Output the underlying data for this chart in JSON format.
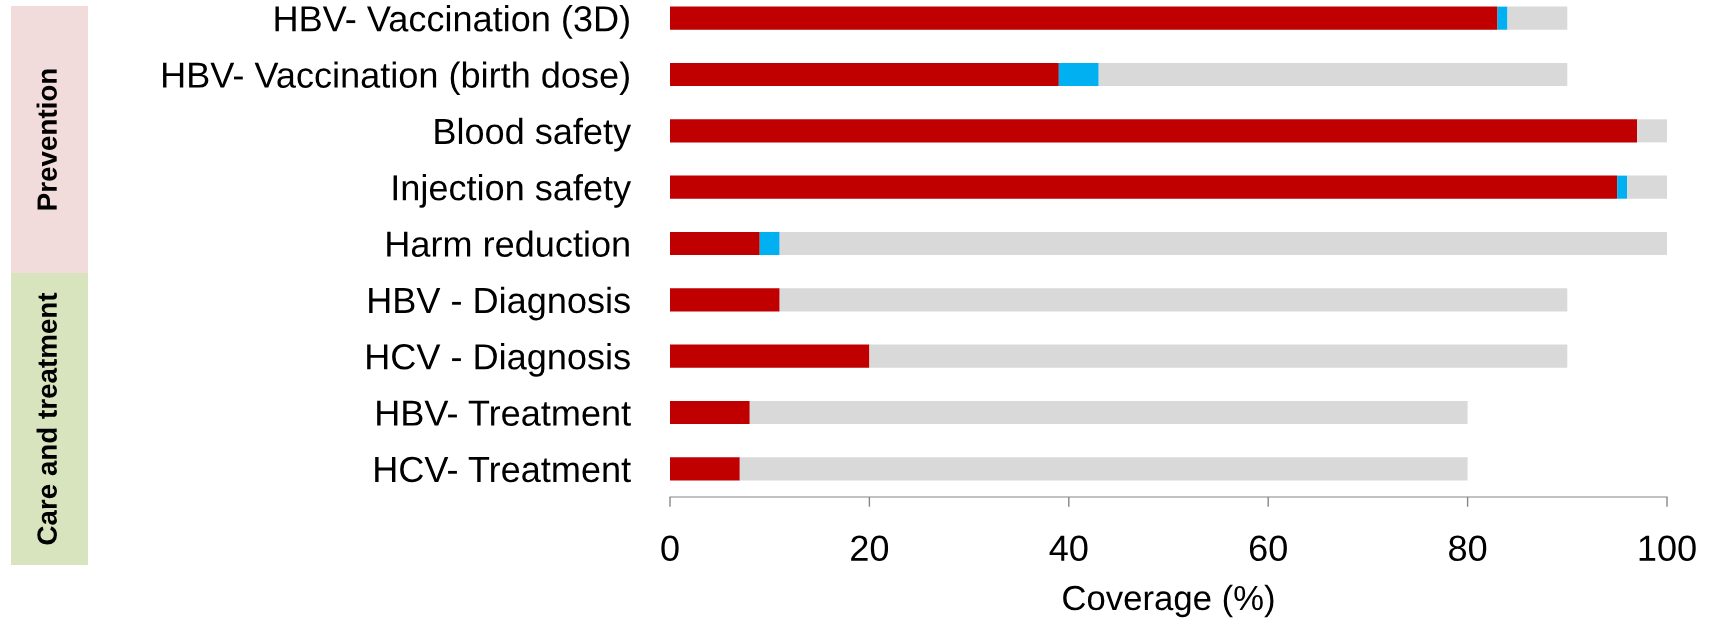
{
  "chart_data": {
    "type": "bar",
    "orientation": "horizontal",
    "stacked": true,
    "categories": [
      "HBV- Vaccination (3D)",
      "HBV- Vaccination (birth dose)",
      "Blood safety",
      "Injection safety",
      "Harm reduction",
      "HBV - Diagnosis",
      "HCV - Diagnosis",
      "HBV- Treatment",
      "HCV- Treatment"
    ],
    "series": [
      {
        "color": "#c00000",
        "values": [
          83,
          39,
          97,
          95,
          9,
          11,
          20,
          8,
          7
        ]
      },
      {
        "color": "#00b0f0",
        "values": [
          1,
          4,
          null,
          1,
          2,
          null,
          null,
          null,
          null
        ]
      },
      {
        "color": "#d9d9d9",
        "values": [
          6,
          47,
          3,
          4,
          89,
          79,
          70,
          72,
          73
        ]
      }
    ],
    "xlabel": "Coverage (%)",
    "xlim": [
      0,
      100
    ],
    "xticks": [
      0,
      20,
      40,
      60,
      80,
      100
    ],
    "annotations": [
      "Prevention",
      "Care and treatment"
    ]
  }
}
